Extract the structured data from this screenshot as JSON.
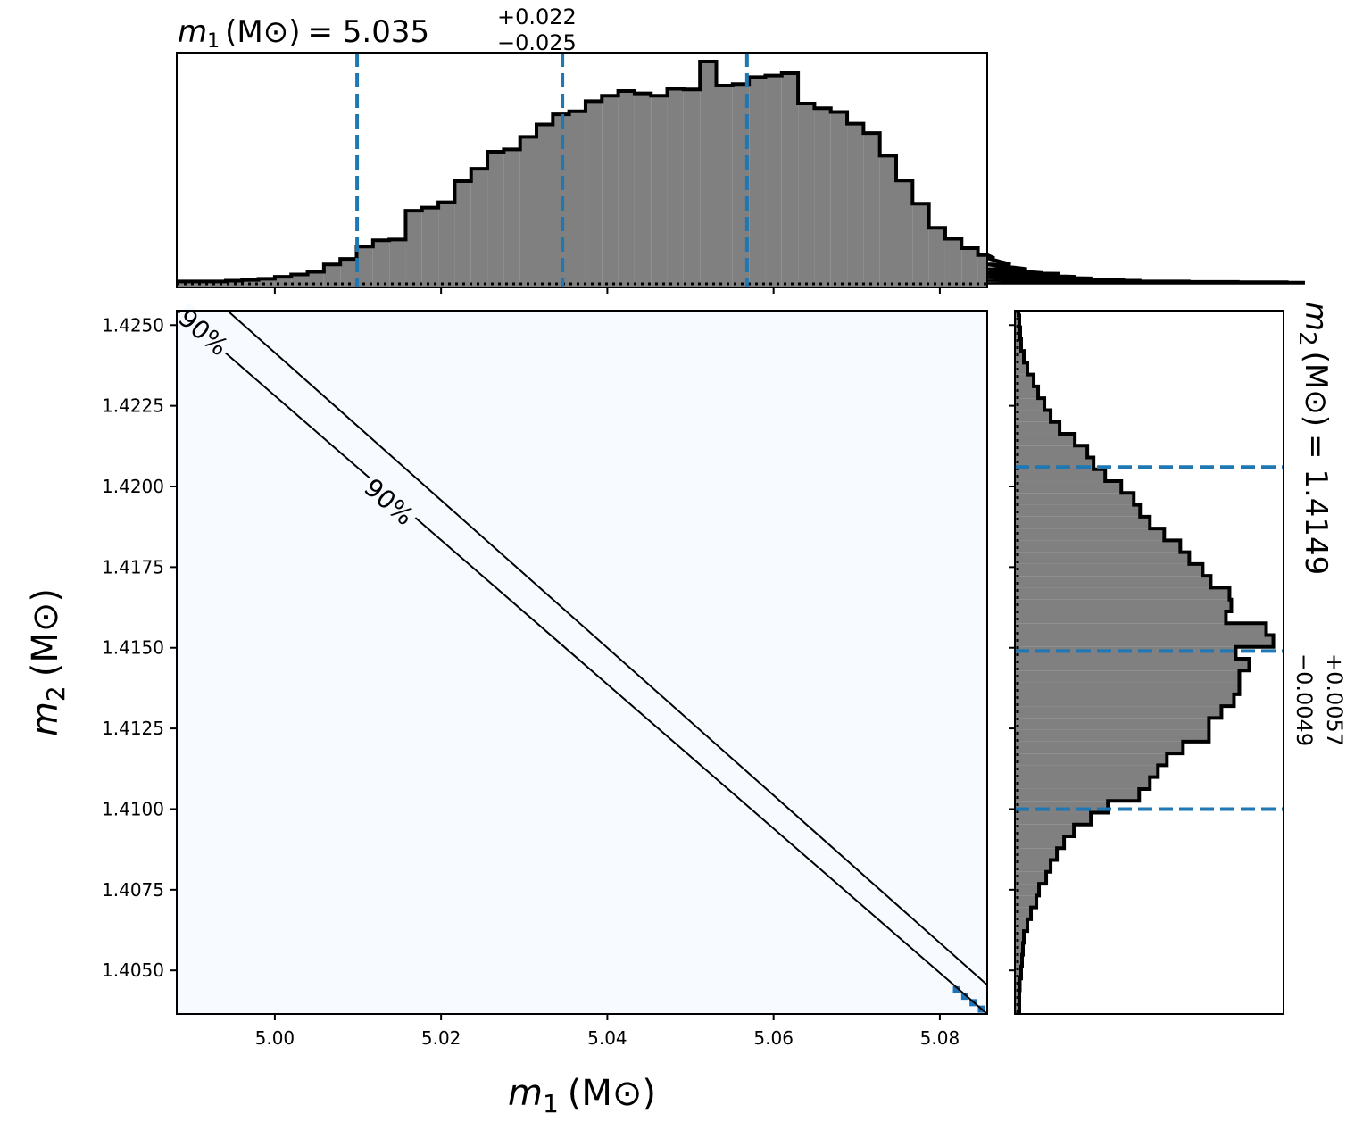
{
  "colors": {
    "hist_fill": "#808080",
    "hist_edge": "#000000",
    "quantile_line": "#1f77b4",
    "density_background": "#f7fbff",
    "density_high": "#2171b5",
    "contour": "#000000"
  },
  "chart_data": {
    "type": "corner",
    "panels": {
      "m1_marginal": {
        "type": "histogram",
        "orientation": "vertical",
        "title": {
          "symbol": "m",
          "subscript": "1",
          "unit": "(M⊙)",
          "equals": "= 5.035",
          "value": 5.035,
          "plus": "+0.022",
          "minus": "−0.025"
        },
        "bin_start": 4.9882,
        "bin_width": 0.001967,
        "counts": [
          0.6,
          0.6,
          0.6,
          0.8,
          1,
          1.3,
          1.8,
          2.4,
          3.1,
          5,
          6.4,
          9.6,
          11.2,
          11.4,
          18.8,
          19.6,
          21,
          26.4,
          29.6,
          34,
          34.6,
          37.8,
          41,
          43.6,
          44.4,
          47,
          48.4,
          49.6,
          49,
          48.4,
          50.2,
          50,
          57.2,
          51,
          51.4,
          53.2,
          53.6,
          54.2,
          46.4,
          45.2,
          44.2,
          41.2,
          38.8,
          33,
          26.6,
          20.6,
          14.4,
          11.6,
          9.2,
          7.4,
          6.6,
          5,
          3.8,
          2.8,
          2.6,
          1.8,
          1.4,
          1,
          1,
          0.8,
          0.6,
          0.6,
          0.6,
          0.5,
          0.5,
          0.5,
          0.4,
          0.4,
          0.4,
          0.3
        ],
        "quantiles": [
          5.0099,
          5.0346,
          5.0568
        ],
        "xlim": [
          4.9882,
          5.0857
        ]
      },
      "joint": {
        "type": "heatmap",
        "xlabel": "m1 (M⊙)",
        "ylabel": "m2 (M⊙)",
        "xlim": [
          4.9882,
          5.0857
        ],
        "ylim": [
          1.40365,
          1.42545
        ],
        "xticks": [
          "5.00",
          "5.02",
          "5.04",
          "5.06",
          "5.08"
        ],
        "xtick_values": [
          5.0,
          5.02,
          5.04,
          5.06,
          5.08
        ],
        "yticks": [
          "1.4050",
          "1.4075",
          "1.4100",
          "1.4125",
          "1.4150",
          "1.4175",
          "1.4200",
          "1.4225",
          "1.4250"
        ],
        "ytick_values": [
          1.405,
          1.4075,
          1.41,
          1.4125,
          1.415,
          1.4175,
          1.42,
          1.4225,
          1.425
        ],
        "contour_levels": [
          "90%",
          "90%"
        ],
        "contour_lines": [
          {
            "x": [
              4.9882,
              5.0857
            ],
            "y": [
              1.42545,
              1.40365
            ]
          },
          {
            "x": [
              4.9943,
              5.0857
            ],
            "y": [
              1.42545,
              1.40455
            ]
          }
        ],
        "dense_cells_m1": [
          4.989,
          4.99,
          5.082,
          5.083,
          5.084,
          5.085
        ],
        "dense_cells_m2": [
          1.4252,
          1.425,
          1.4044,
          1.4042,
          1.404,
          1.4038
        ]
      },
      "m2_marginal": {
        "type": "histogram",
        "orientation": "horizontal",
        "title": {
          "symbol": "m",
          "subscript": "2",
          "unit": "(M⊙)",
          "equals": "= 1.4149",
          "value": 1.4149,
          "plus": "+0.0057",
          "minus": "−0.0049"
        },
        "bin_start": 1.40365,
        "bin_width": 0.000367,
        "counts": [
          0.4,
          0.4,
          0.5,
          0.8,
          1,
          1.2,
          1.4,
          2.2,
          3,
          4.2,
          4.8,
          6.4,
          7.4,
          8.8,
          10.4,
          12.6,
          16.4,
          20.2,
          27.2,
          29.6,
          31.4,
          33.4,
          37,
          42.8,
          42.8,
          45.6,
          48.4,
          49.6,
          49.6,
          51.8,
          48.8,
          57.2,
          55.6,
          46.6,
          47.8,
          47.4,
          43.2,
          41.4,
          38.4,
          36.4,
          32.8,
          29.6,
          27.4,
          26,
          23.2,
          19.6,
          17,
          15.6,
          12.8,
          9.4,
          7.4,
          6,
          4.6,
          3.6,
          2.2,
          1.4,
          0.8,
          0.6,
          0.4,
          0.2
        ],
        "quantiles": [
          1.41,
          1.4149,
          1.4206
        ],
        "ylim": [
          1.40365,
          1.42545
        ]
      }
    }
  }
}
